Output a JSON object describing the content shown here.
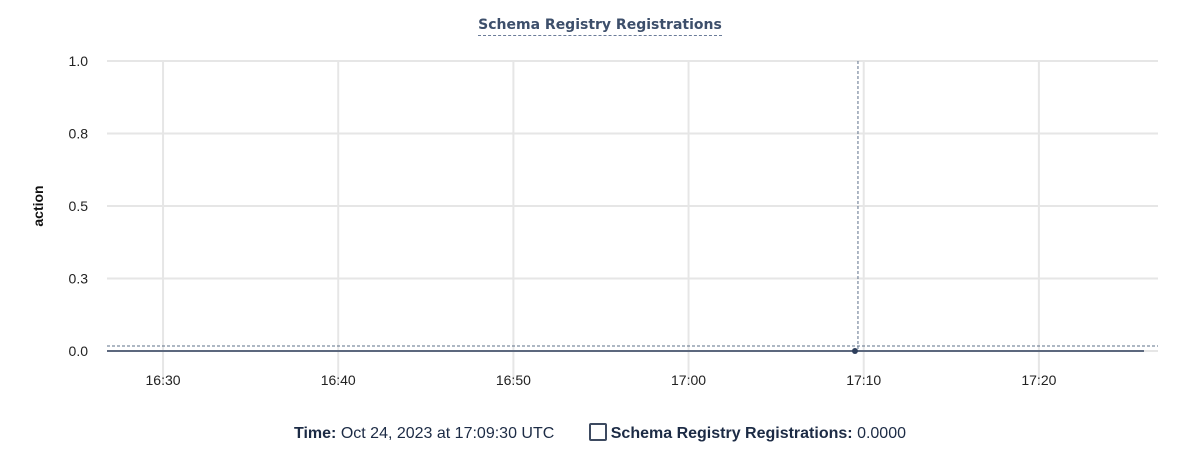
{
  "chart_data": {
    "type": "line",
    "title": "Schema Registry Registrations",
    "ylabel": "action",
    "xlabel": "",
    "ylim": [
      0,
      1
    ],
    "yticks": [
      0,
      0.25,
      0.5,
      0.75,
      1.0
    ],
    "ytick_labels": [
      "0.0",
      "0.3",
      "0.5",
      "0.8",
      "1.0"
    ],
    "xlim": [
      "16:26:48",
      "17:26:48"
    ],
    "xtick_labels": [
      "16:30",
      "16:40",
      "16:50",
      "17:00",
      "17:10",
      "17:20"
    ],
    "grid": true,
    "series": [
      {
        "name": "Schema Registry Registrations",
        "color": "#2e3f5c",
        "x": [
          "16:26:48",
          "17:26:00"
        ],
        "y": [
          0,
          0
        ]
      }
    ],
    "hover": {
      "x": "17:09:30",
      "y": 0
    }
  },
  "legend": {
    "time_label": "Time:",
    "time_value": "Oct 24, 2023 at 17:09:30 UTC",
    "series_label": "Schema Registry Registrations:",
    "series_value": "0.0000"
  }
}
